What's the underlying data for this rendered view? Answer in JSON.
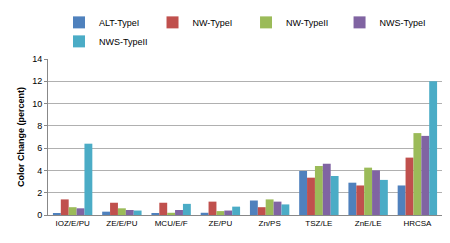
{
  "chart_data": {
    "type": "bar",
    "y_label": "Color Change (percent)",
    "categories": [
      "IOZ/E/PU",
      "ZE/E/PU",
      "MCU/E/F",
      "ZE/PU",
      "Zn/PS",
      "TSZ/LE",
      "ZnE/LE",
      "HRCSA"
    ],
    "series": [
      {
        "name": "ALT-TypeI",
        "color": "#4F81BD",
        "values": [
          0.1,
          0.3,
          0.15,
          0.2,
          1.3,
          3.95,
          2.9,
          2.65
        ]
      },
      {
        "name": "NW-TypeI",
        "color": "#C0504D",
        "values": [
          1.4,
          1.1,
          1.1,
          1.2,
          0.7,
          3.35,
          2.65,
          5.15
        ]
      },
      {
        "name": "NW-TypeII",
        "color": "#9BBB59",
        "values": [
          0.7,
          0.6,
          0.2,
          0.35,
          1.4,
          4.4,
          4.25,
          7.35
        ]
      },
      {
        "name": "NWS-TypeI",
        "color": "#8064A2",
        "values": [
          0.6,
          0.45,
          0.45,
          0.4,
          1.2,
          4.6,
          4.0,
          7.1
        ]
      },
      {
        "name": "NWS-TypeII",
        "color": "#4BACC6",
        "values": [
          6.4,
          0.4,
          1.0,
          0.75,
          0.95,
          3.5,
          3.15,
          12.0
        ]
      }
    ],
    "ylim": [
      0,
      14
    ],
    "yticks": [
      0,
      2,
      4,
      6,
      8,
      10,
      12,
      14
    ],
    "grid": true,
    "legend": "top"
  }
}
